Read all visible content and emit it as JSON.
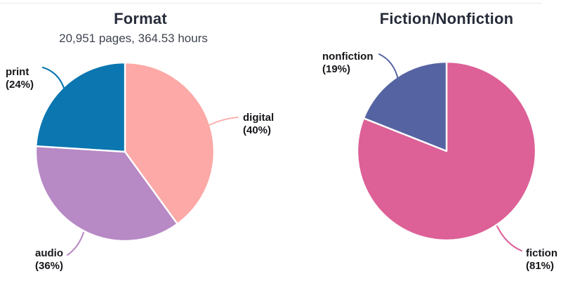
{
  "page": {
    "background": "#ffffff",
    "divider_color": "#e8e8e8"
  },
  "chart_data": [
    {
      "type": "pie",
      "title": "Format",
      "subtitle": "20,951 pages, 364.53 hours",
      "start": "top",
      "direction": "clockwise",
      "labels_position": "outside",
      "categories": [
        "digital",
        "audio",
        "print"
      ],
      "values": [
        40,
        36,
        24
      ],
      "unit": "%",
      "slices": [
        {
          "label": "digital",
          "value": 40,
          "value_label": "(40%)",
          "color": "#fca9a7"
        },
        {
          "label": "audio",
          "value": 36,
          "value_label": "(36%)",
          "color": "#b789c5"
        },
        {
          "label": "print",
          "value": 24,
          "value_label": "(24%)",
          "color": "#0b76b0"
        }
      ]
    },
    {
      "type": "pie",
      "title": "Fiction/Nonfiction",
      "start": "top",
      "direction": "clockwise",
      "labels_position": "outside",
      "categories": [
        "fiction",
        "nonfiction"
      ],
      "values": [
        81,
        19
      ],
      "unit": "%",
      "slices": [
        {
          "label": "fiction",
          "value": 81,
          "value_label": "(81%)",
          "color": "#dd6097"
        },
        {
          "label": "nonfiction",
          "value": 19,
          "value_label": "(19%)",
          "color": "#5663a2"
        }
      ]
    }
  ]
}
